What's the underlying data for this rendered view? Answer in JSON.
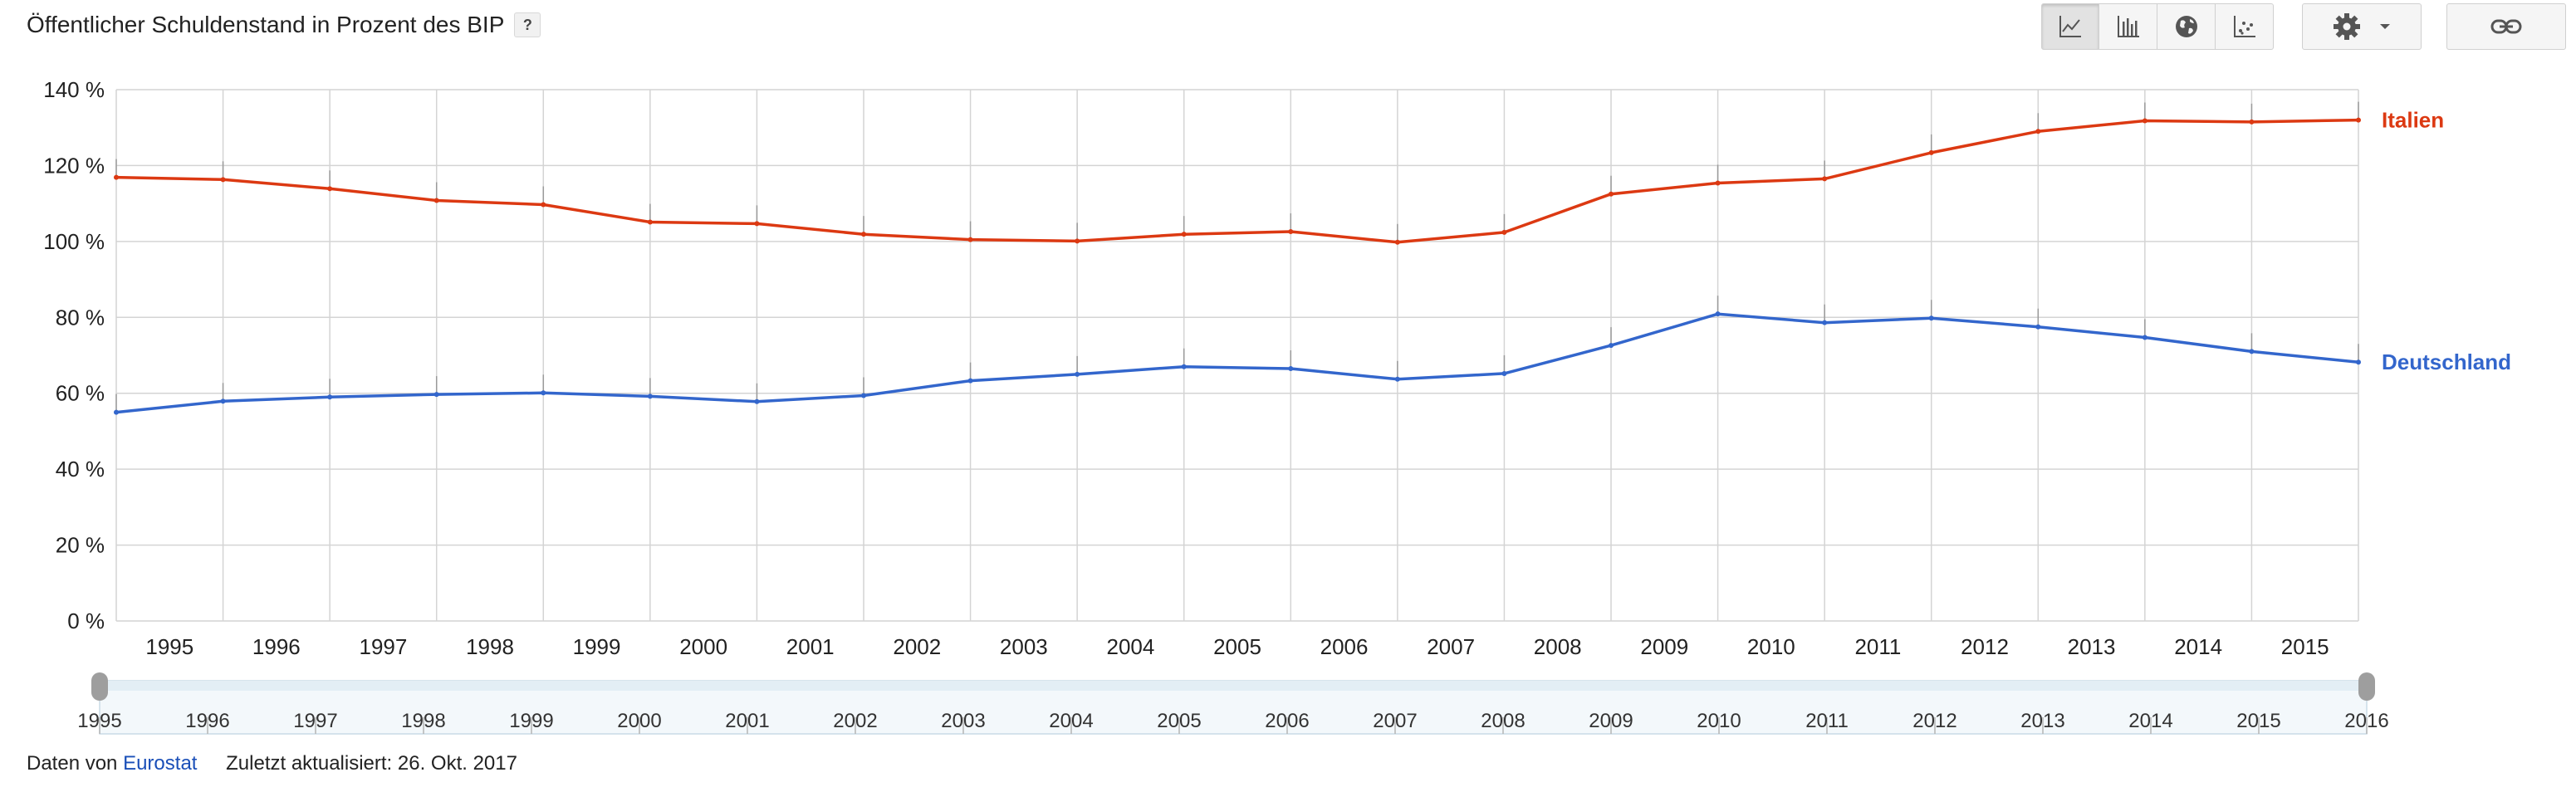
{
  "header": {
    "title": "Öffentlicher Schuldenstand in Prozent des BIP",
    "help_label": "?"
  },
  "toolbar": {
    "views": [
      {
        "name": "line-chart-icon",
        "active": true
      },
      {
        "name": "bar-chart-icon",
        "active": false
      },
      {
        "name": "globe-icon",
        "active": false
      },
      {
        "name": "scatter-icon",
        "active": false
      }
    ],
    "settings_icon": "gear-icon",
    "link_icon": "link-icon"
  },
  "colors": {
    "italien": "#dc3912",
    "deutschland": "#3366cc",
    "grid": "#d4d4d4",
    "link": "#1a4fb8"
  },
  "chart_data": {
    "type": "line",
    "x": [
      1995,
      1996,
      1997,
      1998,
      1999,
      2000,
      2001,
      2002,
      2003,
      2004,
      2005,
      2006,
      2007,
      2008,
      2009,
      2010,
      2011,
      2012,
      2013,
      2014,
      2015,
      2016
    ],
    "x_tick_labels": [
      "1995",
      "1996",
      "1997",
      "1998",
      "1999",
      "2000",
      "2001",
      "2002",
      "2003",
      "2004",
      "2005",
      "2006",
      "2007",
      "2008",
      "2009",
      "2010",
      "2011",
      "2012",
      "2013",
      "2014",
      "2015"
    ],
    "y_ticks": [
      0,
      20,
      40,
      60,
      80,
      100,
      120,
      140
    ],
    "y_tick_labels": [
      "0 %",
      "20 %",
      "40 %",
      "60 %",
      "80 %",
      "100 %",
      "120 %",
      "140 %"
    ],
    "ylim": [
      0,
      140
    ],
    "xlim": [
      1995,
      2016
    ],
    "grid": true,
    "legend": "right",
    "series": [
      {
        "name": "Italien",
        "color": "#dc3912",
        "values": [
          116.9,
          116.3,
          113.9,
          110.8,
          109.7,
          105.1,
          104.7,
          101.9,
          100.5,
          100.1,
          101.9,
          102.6,
          99.8,
          102.4,
          112.5,
          115.4,
          116.5,
          123.4,
          129.0,
          131.8,
          131.5,
          132.0
        ]
      },
      {
        "name": "Deutschland",
        "color": "#3366cc",
        "values": [
          55.0,
          57.9,
          59.0,
          59.7,
          60.1,
          59.2,
          57.8,
          59.4,
          63.3,
          65.0,
          67.0,
          66.5,
          63.7,
          65.2,
          72.6,
          80.9,
          78.6,
          79.8,
          77.5,
          74.7,
          71.0,
          68.2
        ]
      }
    ],
    "range_selector": {
      "labels": [
        "1995",
        "1996",
        "1997",
        "1998",
        "1999",
        "2000",
        "2001",
        "2002",
        "2003",
        "2004",
        "2005",
        "2006",
        "2007",
        "2008",
        "2009",
        "2010",
        "2011",
        "2012",
        "2013",
        "2014",
        "2015",
        "2016"
      ],
      "start": 1995,
      "end": 2016
    }
  },
  "footer": {
    "source_prefix": "Daten von",
    "source_link": "Eurostat",
    "updated": "Zuletzt aktualisiert: 26. Okt. 2017"
  }
}
